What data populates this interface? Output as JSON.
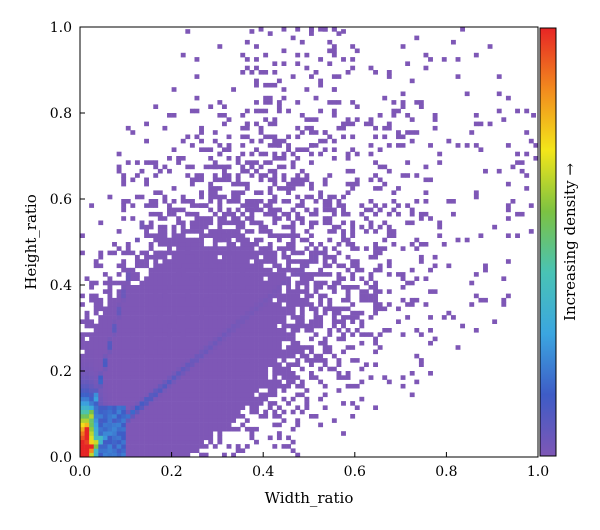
{
  "chart_data": {
    "type": "heatmap",
    "title": "",
    "xlabel": "Width_ratio",
    "ylabel": "Height_ratio",
    "xlim": [
      0,
      1
    ],
    "ylim": [
      0,
      1
    ],
    "xticks": [
      "0.0",
      "0.2",
      "0.4",
      "0.6",
      "0.8",
      "1.0"
    ],
    "yticks": [
      "0.0",
      "0.2",
      "0.4",
      "0.6",
      "0.8",
      "1.0"
    ],
    "colorbar_label": "Increasing density →",
    "colormap": [
      "#7e57b6",
      "#3e5cc6",
      "#3ba6e0",
      "#49c3b5",
      "#7cc242",
      "#f3e61a",
      "#f28a1e",
      "#e62525"
    ],
    "cell_size": 0.01,
    "density_model": {
      "description": "2D histogram of width vs height ratios, dense ridge along y≈x near origin",
      "peak": [
        0.01,
        0.03
      ],
      "core_extent": {
        "x_max": 0.45,
        "y_max": 0.55
      },
      "outliers": [
        [
          0.23,
          1.0
        ],
        [
          0.37,
          1.0
        ],
        [
          0.57,
          1.0
        ],
        [
          1.0,
          0.79
        ],
        [
          0.73,
          0.41
        ],
        [
          0.61,
          0.37
        ],
        [
          0.56,
          0.22
        ],
        [
          0.65,
          0.57
        ],
        [
          0.44,
          0.99
        ]
      ]
    },
    "grid": false,
    "legend": "colorbar-right"
  }
}
